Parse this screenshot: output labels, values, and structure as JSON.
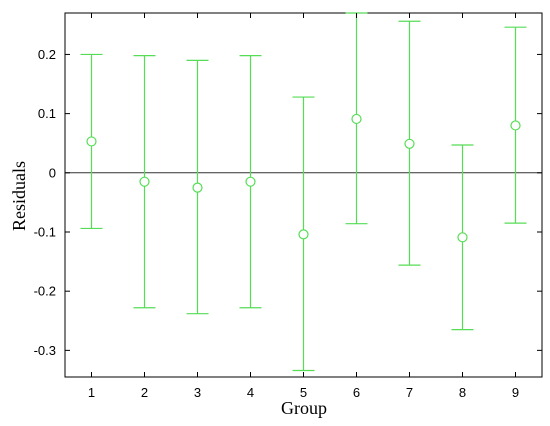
{
  "chart_data": {
    "type": "scatter",
    "title": "",
    "xlabel": "Group",
    "ylabel": "Residuals",
    "x": [
      1,
      2,
      3,
      4,
      5,
      6,
      7,
      8,
      9
    ],
    "xticks": [
      "1",
      "2",
      "3",
      "4",
      "5",
      "6",
      "7",
      "8",
      "9"
    ],
    "xlim": [
      0.5,
      9.5
    ],
    "ylim": [
      -0.345,
      0.27
    ],
    "yticks": [
      "-0.3",
      "-0.2",
      "-0.1",
      "0",
      "0.1",
      "0.2"
    ],
    "ytick_values": [
      -0.3,
      -0.2,
      -0.1,
      0,
      0.1,
      0.2
    ],
    "reference_line": 0,
    "grid": false,
    "series": [
      {
        "values": [
          0.053,
          -0.015,
          -0.025,
          -0.015,
          -0.104,
          0.091,
          0.049,
          -0.109,
          0.08
        ],
        "upper": [
          0.2,
          0.198,
          0.19,
          0.198,
          0.128,
          0.27,
          0.256,
          0.047,
          0.246
        ],
        "lower": [
          -0.094,
          -0.228,
          -0.238,
          -0.228,
          -0.334,
          -0.086,
          -0.156,
          -0.265,
          -0.085
        ]
      }
    ],
    "colors": {
      "series": "#55dd55",
      "reference_line": "#333333",
      "axes": "#000000"
    }
  }
}
